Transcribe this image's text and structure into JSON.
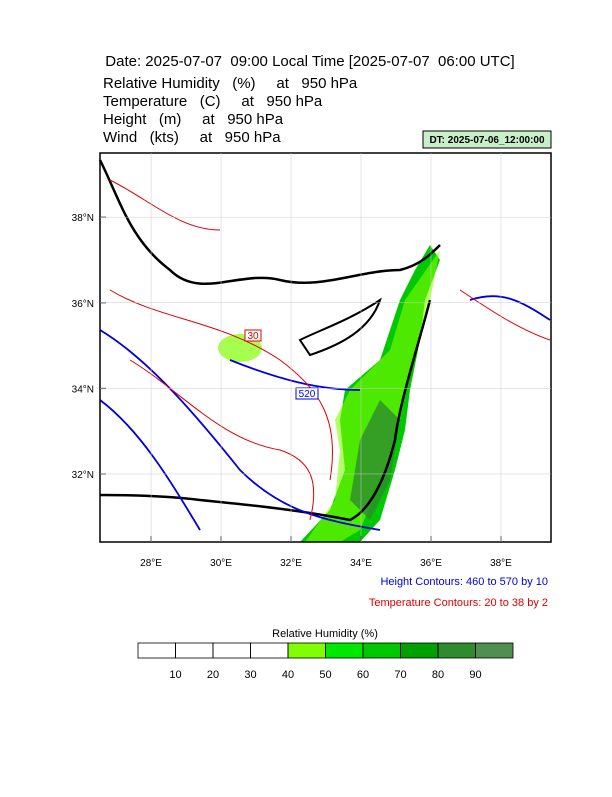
{
  "header": {
    "title": "Date: 2025-07-07  09:00 Local Time [2025-07-07  06:00 UTC]",
    "fields": [
      "Relative Humidity   (%)     at   950 hPa",
      "Temperature   (C)     at   950 hPa",
      "Height   (m)     at   950 hPa",
      "Wind   (kts)     at   950 hPa"
    ]
  },
  "valid_time": "DT: 2025-07-06_12:00:00",
  "map": {
    "lonlim": [
      26.54,
      39.43
    ],
    "latlim": [
      30.41,
      39.5
    ],
    "lon_ticks": [
      {
        "value": 28,
        "label": "28°E"
      },
      {
        "value": 30,
        "label": "30°E"
      },
      {
        "value": 32,
        "label": "32°E"
      },
      {
        "value": 34,
        "label": "34°E"
      },
      {
        "value": 36,
        "label": "36°E"
      },
      {
        "value": 38,
        "label": "38°E"
      }
    ],
    "lat_ticks": [
      {
        "value": 38,
        "label": "38°N"
      },
      {
        "value": 36,
        "label": "36°N"
      },
      {
        "value": 34,
        "label": "34°N"
      },
      {
        "value": 32,
        "label": "32°N"
      }
    ],
    "contour_labels": [
      "520",
      "30"
    ]
  },
  "notes": [
    "Height Contours: 460 to 570 by 10",
    "Temperature Contours: 20 to 38 by 2"
  ],
  "colorbar": {
    "title": "Relative Humidity  (%)",
    "ticks": [
      10,
      20,
      30,
      40,
      50,
      60,
      70,
      80,
      90
    ],
    "colors": [
      "#ffffff",
      "#ffffff",
      "#ffffff",
      "#ffffff",
      "#80ff00",
      "#00e800",
      "#00c800",
      "#00a000",
      "#2e8b2e",
      "#4f8f4f"
    ]
  }
}
